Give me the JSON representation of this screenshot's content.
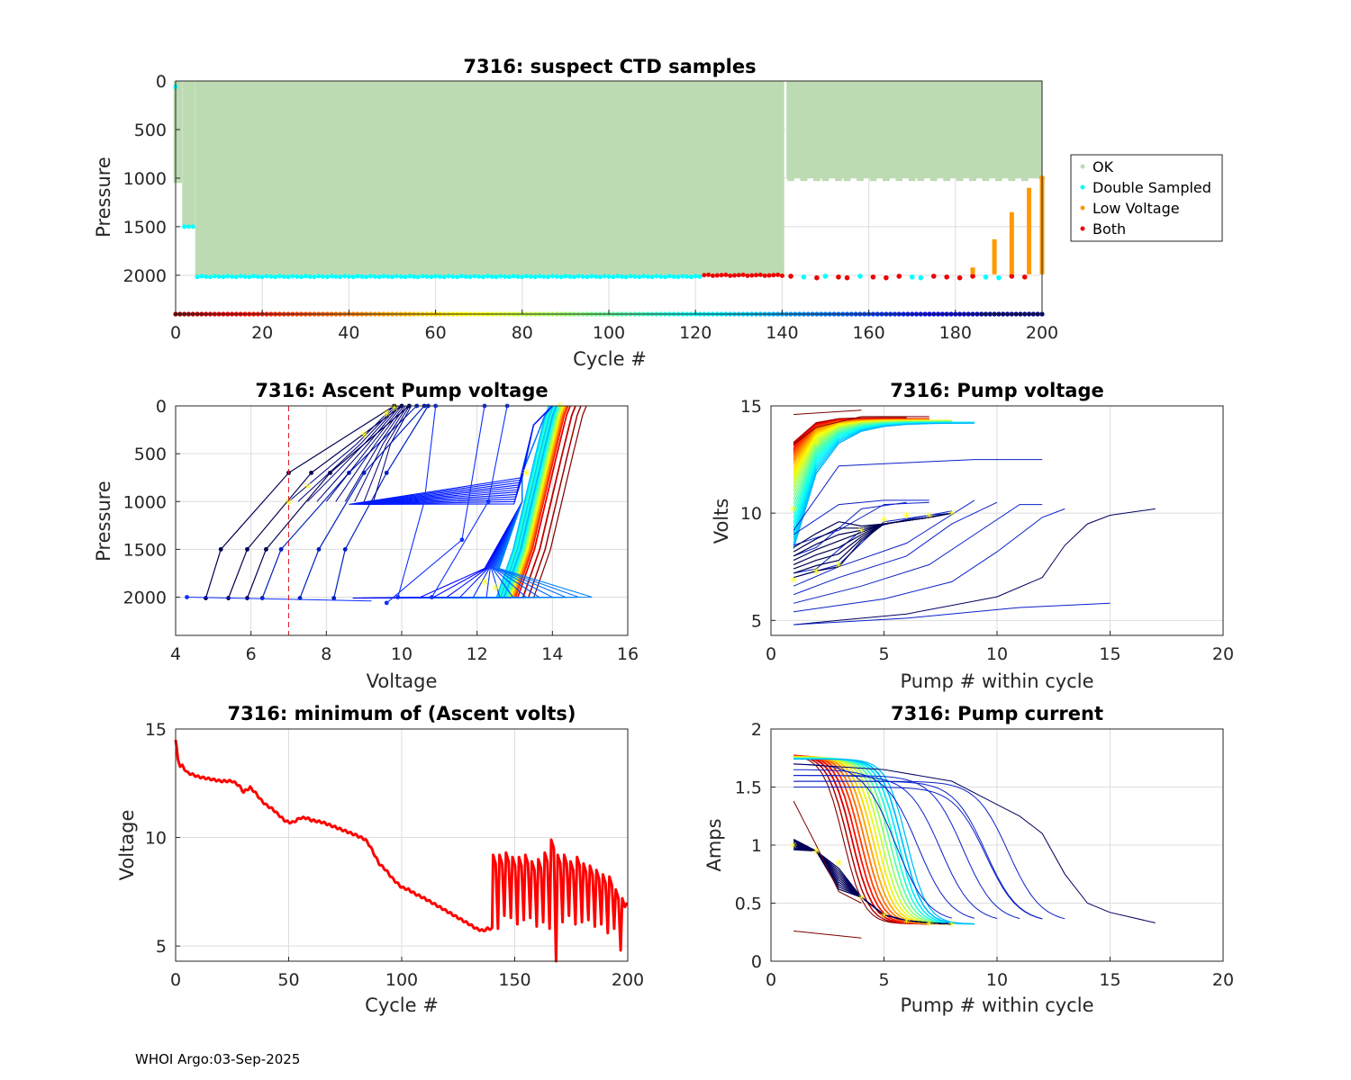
{
  "footer": "WHOI Argo:03-Sep-2025",
  "colors": {
    "ok": "#bcdbb2",
    "double": "#00ffff",
    "low_voltage": "#ff9900",
    "both": "#ee0000",
    "grid": "#dddddd",
    "axis": "#262626",
    "min_volts_line": "#ff0000",
    "cutoff_line": "#e0202a"
  },
  "chart_data": [
    {
      "id": "suspect",
      "type": "scatter",
      "title": "7316: suspect CTD samples",
      "xlabel": "Cycle #",
      "ylabel": "Pressure",
      "xlim": [
        0,
        200
      ],
      "ylim": [
        2400,
        0
      ],
      "xticks": [
        0,
        20,
        40,
        60,
        80,
        100,
        120,
        140,
        160,
        180,
        200
      ],
      "yticks": [
        0,
        500,
        1000,
        1500,
        2000
      ],
      "legend": {
        "position": "outside-right",
        "entries": [
          "OK",
          "Double Sampled",
          "Low Voltage",
          "Both"
        ]
      },
      "ok_profile_depths": [
        {
          "cycles": [
            0,
            1
          ],
          "max_pressure": 1050
        },
        {
          "cycles": [
            2,
            4
          ],
          "max_pressure": 1500
        },
        {
          "cycles": [
            5,
            140
          ],
          "max_pressure": 2010
        }
      ],
      "ok_short_profiles": [
        142,
        145,
        148,
        150,
        153,
        155,
        158,
        161,
        164,
        167,
        170,
        172,
        175,
        178,
        181,
        184,
        187,
        190,
        193,
        196
      ],
      "ok_short_depth": 1030,
      "double_sampled_bottom": {
        "cycles": [
          5,
          121
        ],
        "pressure": 2010
      },
      "both_bottom": {
        "cycles": [
          122,
          140
        ],
        "pressure": 2005
      },
      "low_voltage_bars": [
        {
          "cycle": 184,
          "top": 1920
        },
        {
          "cycle": 189,
          "top": 1630
        },
        {
          "cycle": 193,
          "top": 1350
        },
        {
          "cycle": 197,
          "top": 1100
        },
        {
          "cycle": 200,
          "top": 1000
        }
      ],
      "cycle_marker_pressure": 2400
    },
    {
      "id": "ascent",
      "type": "line",
      "title": "7316: Ascent Pump voltage",
      "xlabel": "Voltage",
      "ylabel": "Pressure",
      "xlim": [
        4,
        16
      ],
      "ylim": [
        2400,
        0
      ],
      "xticks": [
        4,
        6,
        8,
        10,
        12,
        14,
        16
      ],
      "yticks": [
        0,
        500,
        1000,
        1500,
        2000
      ],
      "cutoff_voltage": 7,
      "sample_pressures": [
        2000,
        1500,
        1000,
        500,
        100,
        0
      ],
      "early_profile_voltages": {
        "at_2000": [
          13.0,
          14.5
        ],
        "at_0": [
          14.0,
          14.8
        ]
      },
      "late_profile_voltages": {
        "at_2000": [
          4.3,
          9.0
        ],
        "at_0": [
          9.0,
          12.0
        ]
      }
    },
    {
      "id": "pumpv",
      "type": "line",
      "title": "7316: Pump voltage",
      "xlabel": "Pump # within cycle",
      "ylabel": "Volts",
      "xlim": [
        0,
        20
      ],
      "ylim": [
        4.3,
        15
      ],
      "xticks": [
        0,
        5,
        10,
        15,
        20
      ],
      "yticks": [
        5,
        10,
        15
      ],
      "early_curve": {
        "pumps": [
          1,
          2,
          3,
          5,
          9
        ],
        "volts": [
          12.5,
          13.6,
          14.0,
          14.2,
          14.2
        ]
      },
      "late_curve_longest": {
        "pumps": [
          1,
          3,
          6,
          10,
          12,
          13,
          14,
          15,
          17
        ],
        "volts": [
          4.8,
          5.0,
          5.3,
          6.1,
          7.0,
          8.5,
          9.5,
          9.9,
          10.2
        ]
      }
    },
    {
      "id": "minvolt",
      "type": "line",
      "title": "7316: minimum of (Ascent volts)",
      "xlabel": "Cycle #",
      "ylabel": "Voltage",
      "xlim": [
        0,
        200
      ],
      "ylim": [
        4.3,
        15
      ],
      "xticks": [
        0,
        50,
        100,
        150,
        200
      ],
      "yticks": [
        5,
        10,
        15
      ],
      "x": [
        0,
        1,
        2,
        3,
        5,
        10,
        15,
        20,
        25,
        28,
        30,
        33,
        35,
        38,
        40,
        43,
        46,
        48,
        50,
        52,
        55,
        58,
        60,
        65,
        70,
        75,
        80,
        84,
        86,
        88,
        90,
        93,
        96,
        98,
        100,
        103,
        106,
        110,
        115,
        120,
        125,
        130,
        133,
        136,
        138,
        140
      ],
      "y": [
        14.5,
        13.6,
        13.3,
        13.3,
        13.0,
        12.8,
        12.7,
        12.6,
        12.6,
        12.4,
        12.1,
        12.3,
        12.1,
        11.7,
        11.5,
        11.3,
        11.0,
        10.8,
        10.7,
        10.7,
        10.9,
        10.9,
        10.8,
        10.7,
        10.5,
        10.3,
        10.1,
        9.9,
        9.6,
        9.2,
        8.8,
        8.5,
        8.1,
        7.9,
        7.7,
        7.6,
        7.4,
        7.2,
        6.9,
        6.6,
        6.3,
        6.0,
        5.8,
        5.7,
        5.8,
        5.8
      ],
      "oscillation_from_cycle": 140,
      "oscillation_peaks": [
        9.2,
        9.2,
        9.3,
        9.1,
        9.1,
        9.2,
        8.9,
        9.0,
        9.3,
        9.9,
        9.2,
        9.2,
        8.9,
        9.1,
        8.8,
        8.7,
        8.5,
        8.3,
        8.2,
        7.6,
        7.2
      ],
      "oscillation_troughs": [
        5.8,
        6.4,
        6.3,
        6.0,
        6.2,
        6.3,
        5.9,
        6.1,
        5.8,
        4.3,
        6.1,
        6.4,
        6.0,
        6.1,
        6.2,
        5.9,
        6.0,
        5.6,
        5.8,
        4.8,
        7.0
      ]
    },
    {
      "id": "pumpa",
      "type": "line",
      "title": "7316: Pump current",
      "xlabel": "Pump # within cycle",
      "ylabel": "Amps",
      "xlim": [
        0,
        20
      ],
      "ylim": [
        0,
        2
      ],
      "xticks": [
        0,
        5,
        10,
        15,
        20
      ],
      "yticks": [
        0,
        0.5,
        1,
        1.5,
        2
      ],
      "ytick_labels": [
        "0",
        "0.5",
        "1",
        "1.5",
        "2"
      ],
      "early_curve": {
        "pumps": [
          1,
          2,
          3,
          4,
          5,
          6,
          7
        ],
        "amps": [
          1.75,
          1.6,
          1.2,
          0.7,
          0.45,
          0.35,
          0.32
        ]
      },
      "late_curve_longest": {
        "pumps": [
          1,
          5,
          8,
          10,
          11,
          12,
          13,
          14,
          15,
          17
        ],
        "amps": [
          1.7,
          1.65,
          1.55,
          1.35,
          1.25,
          1.1,
          0.75,
          0.5,
          0.42,
          0.33
        ]
      }
    }
  ]
}
